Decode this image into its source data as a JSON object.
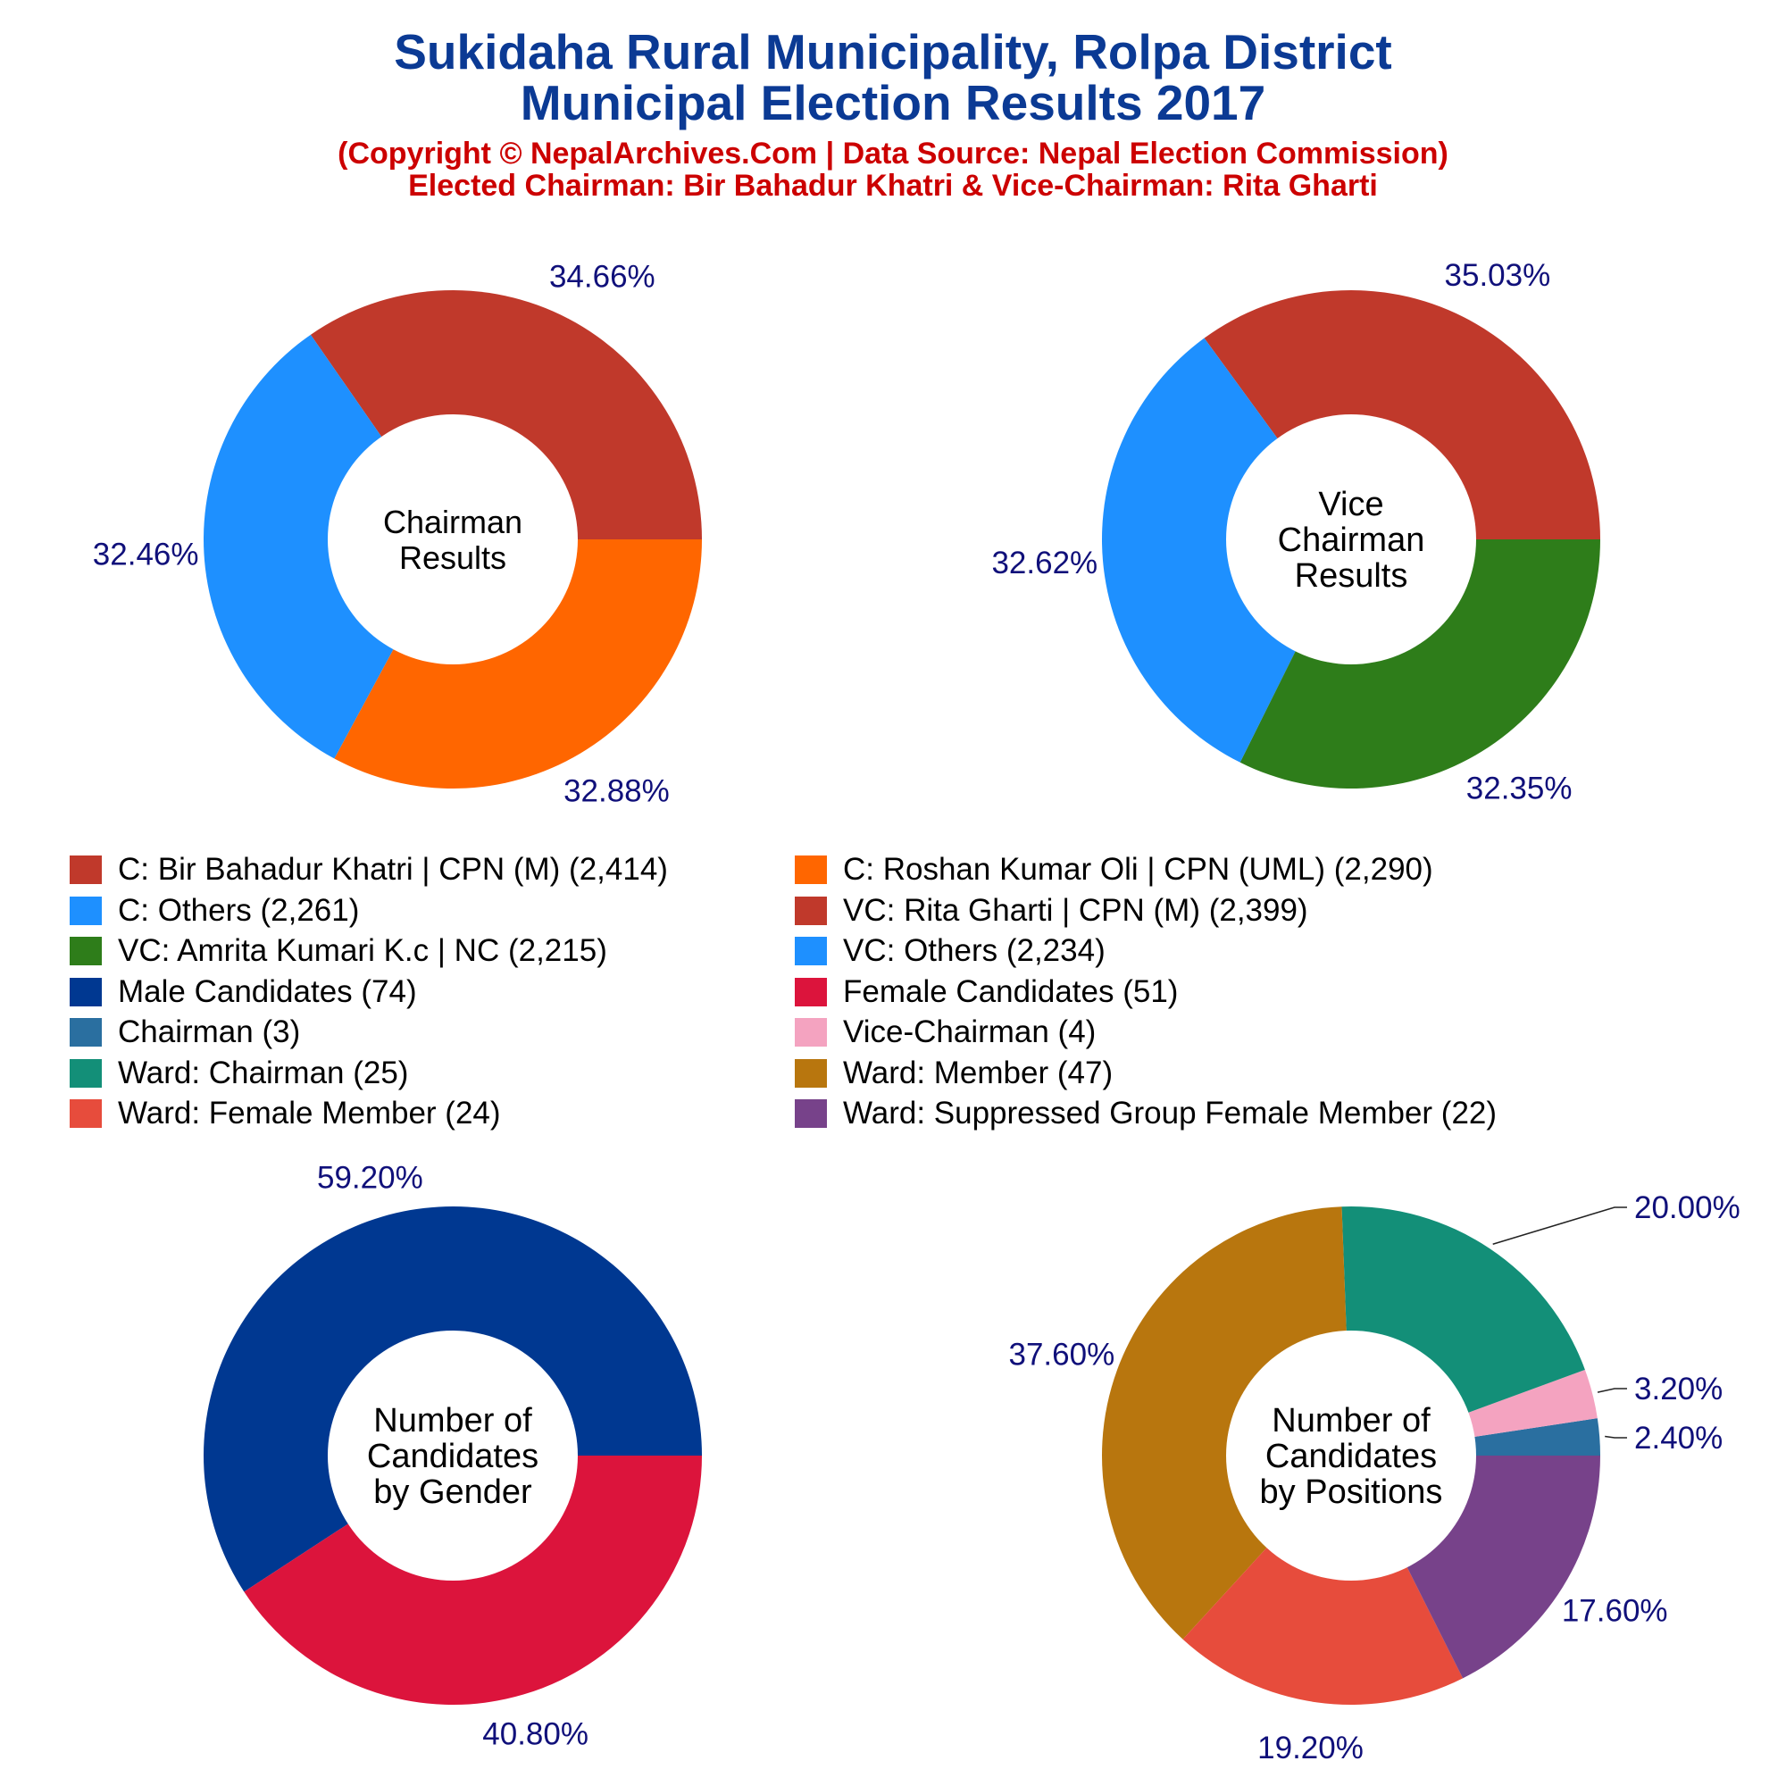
{
  "header": {
    "title_line1": "Sukidaha Rural Municipality, Rolpa District",
    "title_line2": "Municipal Election Results 2017",
    "subtitle_line1": "(Copyright © NepalArchives.Com | Data Source: Nepal Election Commission)",
    "subtitle_line2": "Elected Chairman: Bir Bahadur Khatri & Vice-Chairman: Rita Gharti"
  },
  "legend": [
    {
      "label": "C: Bir Bahadur Khatri | CPN (M) (2,414)",
      "color": "#c0392b"
    },
    {
      "label": "C: Roshan Kumar Oli | CPN (UML) (2,290)",
      "color": "#ff6600"
    },
    {
      "label": "C: Others (2,261)",
      "color": "#1e90ff"
    },
    {
      "label": "VC: Rita Gharti | CPN (M) (2,399)",
      "color": "#c0392b"
    },
    {
      "label": "VC: Amrita Kumari K.c | NC (2,215)",
      "color": "#2e7d1a"
    },
    {
      "label": "VC: Others (2,234)",
      "color": "#1e90ff"
    },
    {
      "label": "Male Candidates (74)",
      "color": "#003891"
    },
    {
      "label": "Female Candidates (51)",
      "color": "#dc143c"
    },
    {
      "label": "Chairman (3)",
      "color": "#2a6fa0"
    },
    {
      "label": "Vice-Chairman (4)",
      "color": "#f4a3c0"
    },
    {
      "label": "Ward: Chairman (25)",
      "color": "#138f78"
    },
    {
      "label": "Ward: Member (47)",
      "color": "#b8760e"
    },
    {
      "label": "Ward: Female Member (24)",
      "color": "#e74c3c"
    },
    {
      "label": "Ward: Suppressed Group Female Member (22)",
      "color": "#77428a"
    }
  ],
  "chart_data": [
    {
      "type": "pie",
      "center_label": [
        "Chairman",
        "Results"
      ],
      "slices": [
        {
          "name": "C: Bir Bahadur Khatri | CPN (M)",
          "value": 2414,
          "percent_label": "34.66%",
          "color": "#c0392b"
        },
        {
          "name": "C: Others",
          "value": 2261,
          "percent_label": "32.46%",
          "color": "#1e90ff"
        },
        {
          "name": "C: Roshan Kumar Oli | CPN (UML)",
          "value": 2290,
          "percent_label": "32.88%",
          "color": "#ff6600"
        }
      ]
    },
    {
      "type": "pie",
      "center_label": [
        "Vice",
        "Chairman",
        "Results"
      ],
      "slices": [
        {
          "name": "VC: Rita Gharti | CPN (M)",
          "value": 2399,
          "percent_label": "35.03%",
          "color": "#c0392b"
        },
        {
          "name": "VC: Others",
          "value": 2234,
          "percent_label": "32.62%",
          "color": "#1e90ff"
        },
        {
          "name": "VC: Amrita Kumari K.c | NC",
          "value": 2215,
          "percent_label": "32.35%",
          "color": "#2e7d1a"
        }
      ]
    },
    {
      "type": "pie",
      "center_label": [
        "Number of",
        "Candidates",
        "by Gender"
      ],
      "slices": [
        {
          "name": "Male Candidates",
          "value": 74,
          "percent_label": "59.20%",
          "color": "#003891"
        },
        {
          "name": "Female Candidates",
          "value": 51,
          "percent_label": "40.80%",
          "color": "#dc143c"
        }
      ]
    },
    {
      "type": "pie",
      "center_label": [
        "Number of",
        "Candidates",
        "by Positions"
      ],
      "slices": [
        {
          "name": "Chairman",
          "value": 3,
          "percent_label": "2.40%",
          "color": "#2a6fa0"
        },
        {
          "name": "Vice-Chairman",
          "value": 4,
          "percent_label": "3.20%",
          "color": "#f4a3c0"
        },
        {
          "name": "Ward: Chairman",
          "value": 25,
          "percent_label": "20.00%",
          "color": "#138f78"
        },
        {
          "name": "Ward: Member",
          "value": 47,
          "percent_label": "37.60%",
          "color": "#b8760e"
        },
        {
          "name": "Ward: Female Member",
          "value": 24,
          "percent_label": "19.20%",
          "color": "#e74c3c"
        },
        {
          "name": "Ward: Suppressed Group Female Member",
          "value": 22,
          "percent_label": "17.60%",
          "color": "#77428a"
        }
      ]
    }
  ]
}
